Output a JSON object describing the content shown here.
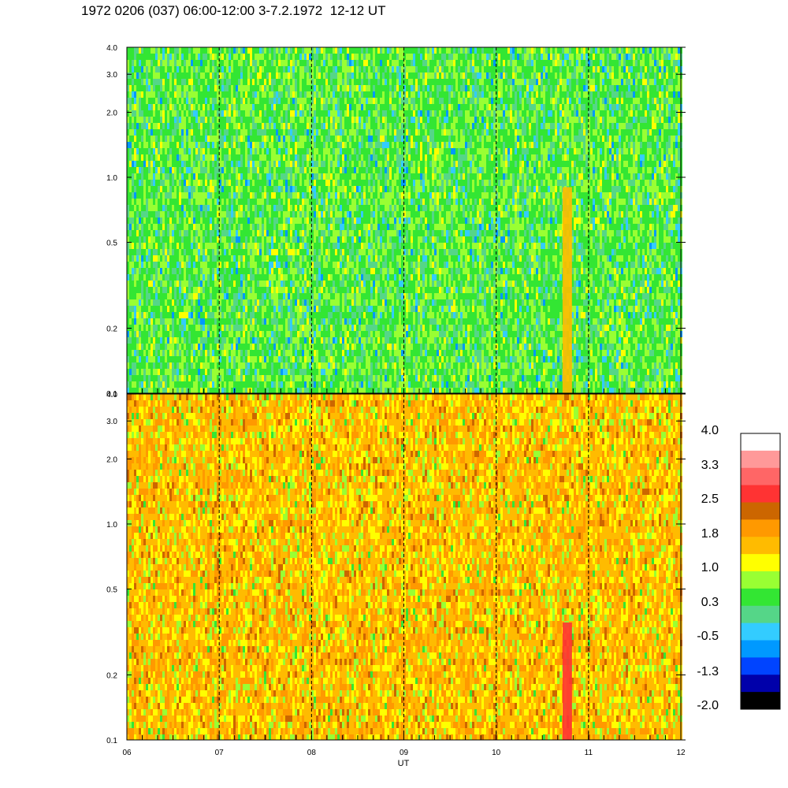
{
  "header": {
    "title": "1972 0206 (037) 06:00-12:00 3-7.2.1972  12-12 UT"
  },
  "chart_data": [
    {
      "type": "heatmap",
      "panel": "upper",
      "xlabel": "",
      "ylabel": "",
      "xlim": [
        6,
        12
      ],
      "ylim": [
        0.1,
        4.0
      ],
      "y_scale": "log",
      "y_ticks": [
        0.1,
        0.2,
        0.5,
        1.0,
        2.0,
        3.0,
        4.0
      ],
      "y_tick_labels": [
        "0.1",
        "0.2",
        "0.5",
        "1.0",
        "2.0",
        "3.0",
        "4.0"
      ],
      "dominant_values": "green/cyan, approx -0.5 to 1.0",
      "dashed_verticals": [
        7,
        8,
        9,
        10,
        11
      ]
    },
    {
      "type": "heatmap",
      "panel": "lower",
      "xlabel": "UT",
      "ylabel": "",
      "xlim": [
        6,
        12
      ],
      "ylim": [
        0.1,
        4.0
      ],
      "y_scale": "log",
      "y_ticks": [
        0.1,
        0.2,
        0.5,
        1.0,
        2.0,
        3.0,
        4.0
      ],
      "y_tick_labels": [
        "0.1",
        "0.2",
        "0.5",
        "1.0",
        "2.0",
        "3.0",
        "4.0"
      ],
      "x_ticks": [
        6,
        7,
        8,
        9,
        10,
        11,
        12
      ],
      "x_tick_labels": [
        "06",
        "07",
        "08",
        "09",
        "10",
        "11",
        "12"
      ],
      "dominant_values": "orange/yellow, approx 1.0 to 2.5",
      "dashed_verticals": [
        7,
        8,
        9,
        10,
        11
      ]
    }
  ],
  "colorbar": {
    "labels": [
      "4.0",
      "3.3",
      "2.5",
      "1.8",
      "1.0",
      "0.3",
      "-0.5",
      "-1.3",
      "-2.0"
    ],
    "colors": [
      "#ffffff",
      "#ff9999",
      "#ff6666",
      "#ff3333",
      "#cc6600",
      "#ff9900",
      "#ffbb00",
      "#ffff00",
      "#99ff33",
      "#33e633",
      "#55d688",
      "#33ccff",
      "#0099ff",
      "#0044ff",
      "#0000aa",
      "#000000"
    ]
  }
}
